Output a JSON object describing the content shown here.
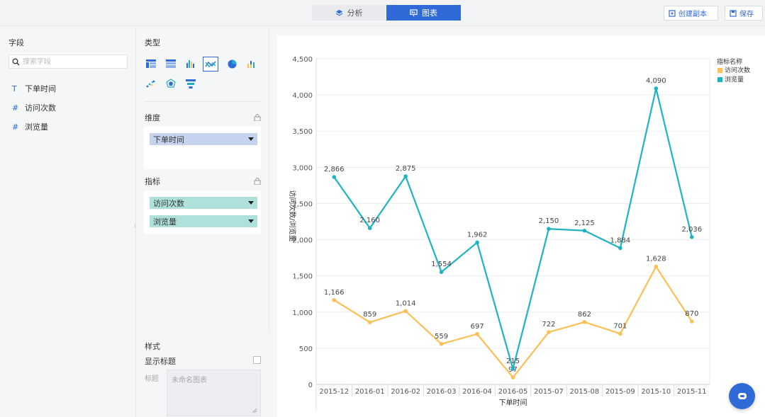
{
  "topbar": {
    "tabs": [
      {
        "label": "分析",
        "active": false
      },
      {
        "label": "图表",
        "active": true
      }
    ],
    "copy_button": "创建副本",
    "save_button": "保存"
  },
  "fields": {
    "title": "字段",
    "search_placeholder": "搜索字段",
    "items": [
      {
        "type_symbol": "T",
        "label": "下单时间"
      },
      {
        "type_symbol": "#",
        "label": "访问次数"
      },
      {
        "type_symbol": "#",
        "label": "浏览量"
      }
    ]
  },
  "config": {
    "type_title": "类型",
    "dimension_title": "维度",
    "dimension_pill": "下单时间",
    "measure_title": "指标",
    "measure_pills": [
      "访问次数",
      "浏览量"
    ],
    "style_title": "样式",
    "show_title_label": "显示标题",
    "title_label": "标题",
    "title_placeholder": "未命名图表"
  },
  "colors": {
    "accent": "#2f6ad6",
    "series_visits": "#fbbf54",
    "series_views": "#1eb3c4"
  },
  "chart_data": {
    "type": "line",
    "categories": [
      "2015-12",
      "2016-01",
      "2016-02",
      "2016-03",
      "2016-04",
      "2016-05",
      "2015-07",
      "2015-08",
      "2015-09",
      "2015-10",
      "2015-11"
    ],
    "legend_title": "指标名称",
    "series": [
      {
        "name": "访问次数",
        "values": [
          1166,
          859,
          1014,
          559,
          697,
          97,
          722,
          862,
          701,
          1628,
          870
        ]
      },
      {
        "name": "浏览量",
        "values": [
          2866,
          2160,
          2875,
          1554,
          1962,
          215,
          2150,
          2125,
          1884,
          4090,
          2036
        ]
      }
    ],
    "value_labels": {
      "访问次数": [
        "1,166",
        "859",
        "1,014",
        "559",
        "697",
        "97",
        "722",
        "862",
        "701",
        "1,628",
        "870"
      ],
      "浏览量": [
        "2,866",
        "2,160",
        "2,875",
        "1,554",
        "1,962",
        "215",
        "2,150",
        "2,125",
        "1,884",
        "4,090",
        "2,036"
      ]
    },
    "xlabel": "下单时间",
    "ylabel": "访问次数/浏览量",
    "ylim": [
      0,
      4500
    ],
    "yticks": [
      0,
      500,
      1000,
      1500,
      2000,
      2500,
      3000,
      3500,
      4000,
      4500
    ],
    "ytick_labels": [
      "0",
      "500",
      "1,000",
      "1,500",
      "2,000",
      "2,500",
      "3,000",
      "3,500",
      "4,000",
      "4,500"
    ],
    "grid": true,
    "legend_position": "top-right"
  }
}
